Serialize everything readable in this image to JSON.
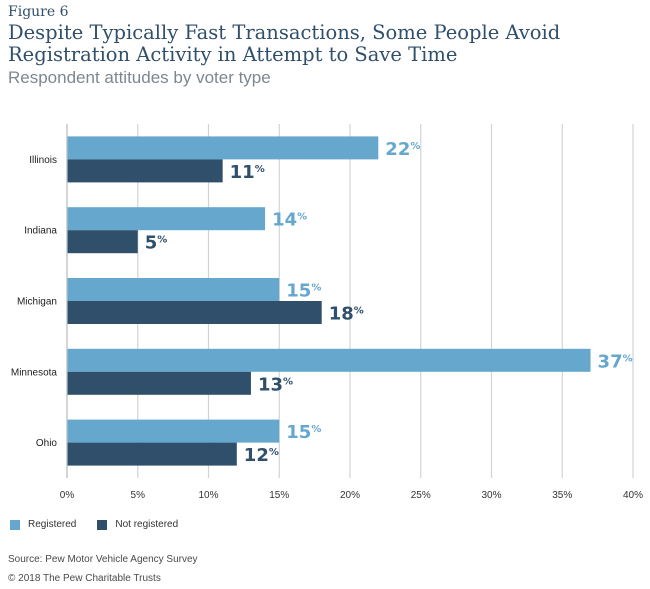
{
  "figure": {
    "label": "Figure 6",
    "title": "Despite Typically Fast Transactions, Some People Avoid Registration Activity in Attempt to Save Time",
    "subtitle": "Respondent attitudes by voter type",
    "source": "Source: Pew Motor Vehicle Agency Survey",
    "copyright": "© 2018 The Pew Charitable Trusts"
  },
  "colors": {
    "registered": "#66a7cd",
    "not_registered": "#2f4f6b",
    "grid": "#cfd4d8",
    "title": "#2f4f6b"
  },
  "chart_data": {
    "type": "bar",
    "orientation": "horizontal",
    "categories": [
      "Illinois",
      "Indiana",
      "Michigan",
      "Minnesota",
      "Ohio"
    ],
    "series": [
      {
        "name": "Registered",
        "values": [
          22,
          14,
          15,
          37,
          15
        ]
      },
      {
        "name": "Not registered",
        "values": [
          11,
          5,
          18,
          13,
          12
        ]
      }
    ],
    "unit": "%",
    "xlim": [
      0,
      40
    ],
    "xticks": [
      "0%",
      "5%",
      "10%",
      "15%",
      "20%",
      "25%",
      "30%",
      "35%",
      "40%"
    ],
    "grid": true,
    "legend_position": "bottom-left",
    "legend": [
      "Registered",
      "Not registered"
    ]
  }
}
